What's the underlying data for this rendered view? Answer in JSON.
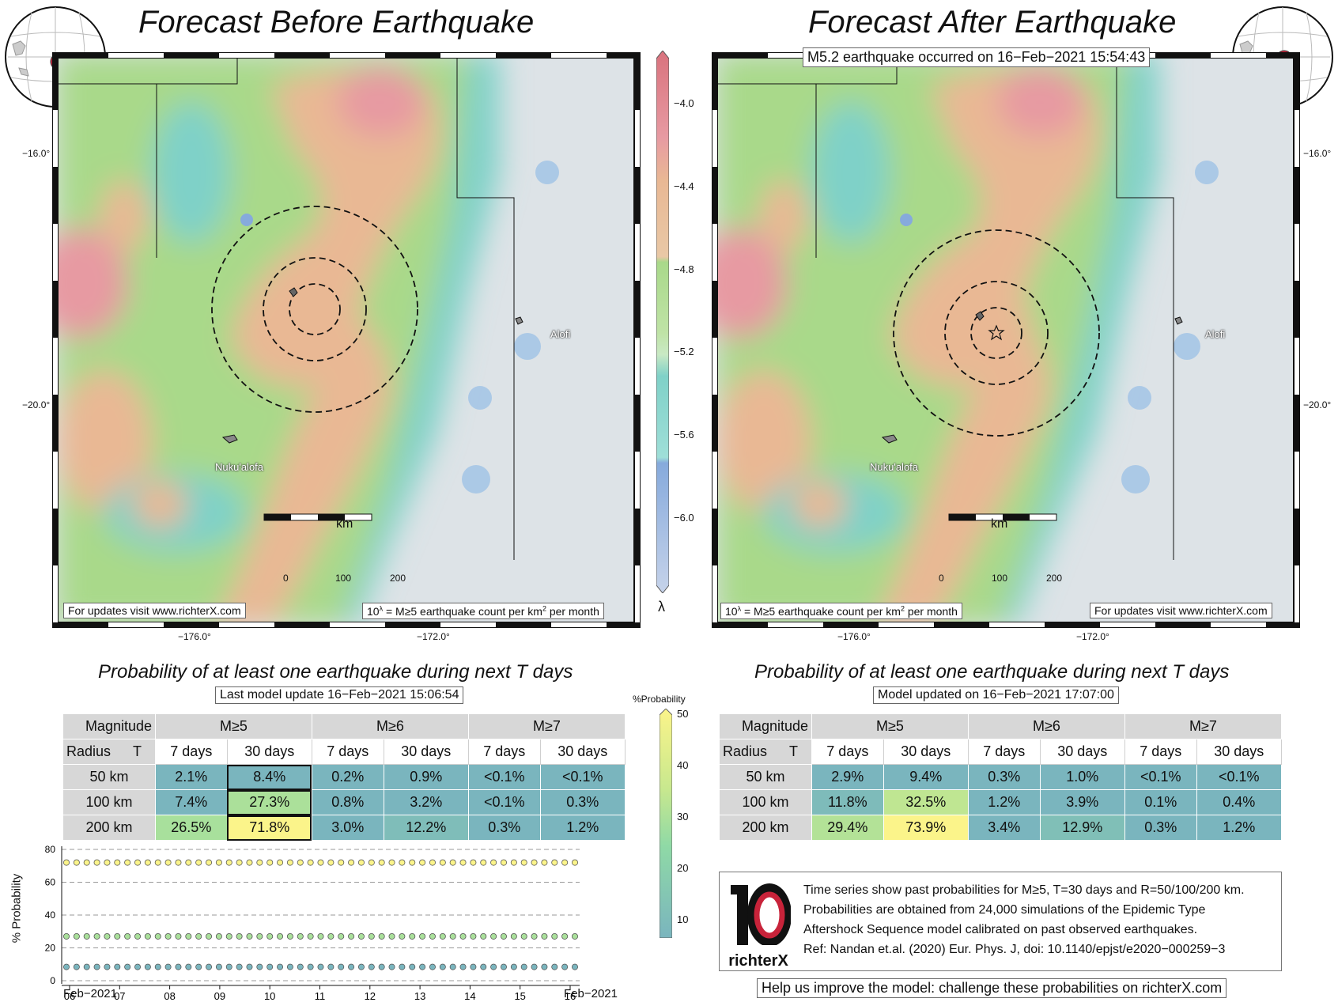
{
  "left": {
    "title": "Forecast Before Earthquake",
    "lat_labels": [
      "−16.0°",
      "−20.0°"
    ],
    "lon_labels": [
      "−176.0°",
      "−172.0°"
    ],
    "places": [
      "Nuku'alofa",
      "Alofi"
    ],
    "scale": {
      "unit": "km",
      "ticks": [
        "0",
        "100",
        "200"
      ]
    },
    "footer_left": "For updates visit www.richterX.com",
    "footer_right": "10λ = M≥5 earthquake count per km2 per month"
  },
  "right": {
    "title": "Forecast After Earthquake",
    "event": "M5.2 earthquake occurred on 16−Feb−2021 15:54:43",
    "lat_labels": [
      "−16.0°",
      "−20.0°"
    ],
    "lon_labels": [
      "−176.0°",
      "−172.0°"
    ],
    "places": [
      "Nuku'alofa",
      "Alofi"
    ],
    "scale": {
      "unit": "km",
      "ticks": [
        "0",
        "100",
        "200"
      ]
    },
    "footer_left": "10λ = M≥5 earthquake count per km2 per month",
    "footer_right": "For updates visit www.richterX.com"
  },
  "colorbar": {
    "symbol": "λ",
    "ticks": [
      "−4.0",
      "−4.4",
      "−4.8",
      "−5.2",
      "−5.6",
      "−6.0"
    ],
    "colors": [
      "#e79aa2",
      "#e9b894",
      "#a9d98a",
      "#7fd1c8",
      "#86aadc"
    ]
  },
  "prob_colorbar": {
    "label": "%Probability",
    "ticks": [
      "50",
      "40",
      "30",
      "20",
      "10"
    ]
  },
  "table_before": {
    "title": "Probability of at least one earthquake during next T days",
    "update": "Last model update 16−Feb−2021 15:06:54",
    "corner_top": "Magnitude",
    "corner_radius": "Radius",
    "corner_t": "T",
    "magnitudes": [
      "M≥5",
      "M≥6",
      "M≥7"
    ],
    "periods": [
      "7 days",
      "30 days",
      "7 days",
      "30 days",
      "7 days",
      "30 days"
    ],
    "rows": [
      {
        "radius": "50 km",
        "values": [
          "2.1%",
          "8.4%",
          "0.2%",
          "0.9%",
          "<0.1%",
          "<0.1%"
        ],
        "pct": [
          2.1,
          8.4,
          0.2,
          0.9,
          0.05,
          0.05
        ]
      },
      {
        "radius": "100 km",
        "values": [
          "7.4%",
          "27.3%",
          "0.8%",
          "3.2%",
          "<0.1%",
          "0.3%"
        ],
        "pct": [
          7.4,
          27.3,
          0.8,
          3.2,
          0.05,
          0.3
        ]
      },
      {
        "radius": "200 km",
        "values": [
          "26.5%",
          "71.8%",
          "3.0%",
          "12.2%",
          "0.3%",
          "1.2%"
        ],
        "pct": [
          26.5,
          71.8,
          3.0,
          12.2,
          0.3,
          1.2
        ]
      }
    ]
  },
  "table_after": {
    "title": "Probability of at least one earthquake during next T days",
    "update": "Model updated on 16−Feb−2021 17:07:00",
    "corner_top": "Magnitude",
    "corner_radius": "Radius",
    "corner_t": "T",
    "magnitudes": [
      "M≥5",
      "M≥6",
      "M≥7"
    ],
    "periods": [
      "7 days",
      "30 days",
      "7 days",
      "30 days",
      "7 days",
      "30 days"
    ],
    "rows": [
      {
        "radius": "50 km",
        "values": [
          "2.9%",
          "9.4%",
          "0.3%",
          "1.0%",
          "<0.1%",
          "<0.1%"
        ],
        "pct": [
          2.9,
          9.4,
          0.3,
          1.0,
          0.05,
          0.05
        ]
      },
      {
        "radius": "100 km",
        "values": [
          "11.8%",
          "32.5%",
          "1.2%",
          "3.9%",
          "0.1%",
          "0.4%"
        ],
        "pct": [
          11.8,
          32.5,
          1.2,
          3.9,
          0.1,
          0.4
        ]
      },
      {
        "radius": "200 km",
        "values": [
          "29.4%",
          "73.9%",
          "3.4%",
          "12.9%",
          "0.3%",
          "1.2%"
        ],
        "pct": [
          29.4,
          73.9,
          3.4,
          12.9,
          0.3,
          1.2
        ]
      }
    ]
  },
  "chart_data": {
    "type": "scatter",
    "ylabel": "% Probability",
    "ylim": [
      0,
      80
    ],
    "yticks": [
      0,
      20,
      40,
      60,
      80
    ],
    "x_ticks": [
      "06",
      "07",
      "08",
      "09",
      "10",
      "11",
      "12",
      "13",
      "14",
      "15",
      "16"
    ],
    "x_start_label": "Feb−2021",
    "x_end_label": "Feb−2021",
    "grid": "horizontal dashed",
    "series": [
      {
        "values": [
          72,
          72,
          72,
          72,
          72,
          72,
          72,
          72,
          72,
          72,
          72,
          72,
          72,
          72,
          72,
          72,
          72,
          72,
          72,
          72,
          72,
          72,
          72,
          72,
          72,
          72,
          72,
          72,
          72,
          72,
          72,
          72,
          72,
          72,
          72,
          72,
          72,
          72,
          72,
          72,
          72,
          72,
          72,
          72,
          72,
          72,
          72,
          72,
          72,
          72,
          72
        ]
      },
      {
        "values": [
          27,
          27,
          27,
          27,
          27,
          27,
          27,
          27,
          27,
          27,
          27,
          27,
          27,
          27,
          27,
          27,
          27,
          27,
          27,
          27,
          27,
          27,
          27,
          27,
          27,
          27,
          27,
          27,
          27,
          27,
          27,
          27,
          27,
          27,
          27,
          27,
          27,
          27,
          27,
          27,
          27,
          27,
          27,
          27,
          27,
          27,
          27,
          27,
          27,
          27,
          27
        ]
      },
      {
        "values": [
          8.4,
          8.4,
          8.4,
          8.4,
          8.4,
          8.4,
          8.4,
          8.4,
          8.4,
          8.4,
          8.4,
          8.4,
          8.4,
          8.4,
          8.4,
          8.4,
          8.4,
          8.4,
          8.4,
          8.4,
          8.4,
          8.4,
          8.4,
          8.4,
          8.4,
          8.4,
          8.4,
          8.4,
          8.4,
          8.4,
          8.4,
          8.4,
          8.4,
          8.4,
          8.4,
          8.4,
          8.4,
          8.4,
          8.4,
          8.4,
          8.4,
          8.4,
          8.4,
          8.4,
          8.4,
          8.4,
          8.4,
          8.4,
          8.4,
          8.4,
          8.4
        ]
      }
    ]
  },
  "info": {
    "logo_text": "richterX",
    "lines": [
      "Time series show past probabilities for M≥5, T=30 days and R=50/100/200 km.",
      "Probabilities are obtained from 24,000 simulations of the Epidemic Type",
      "Aftershock Sequence model calibrated on past observed earthquakes.",
      "Ref: Nandan et.al. (2020) Eur. Phys. J, doi: 10.1140/epjst/e2020−000259−3"
    ],
    "help": "Help us improve the model: challenge these probabilities on richterX.com"
  }
}
